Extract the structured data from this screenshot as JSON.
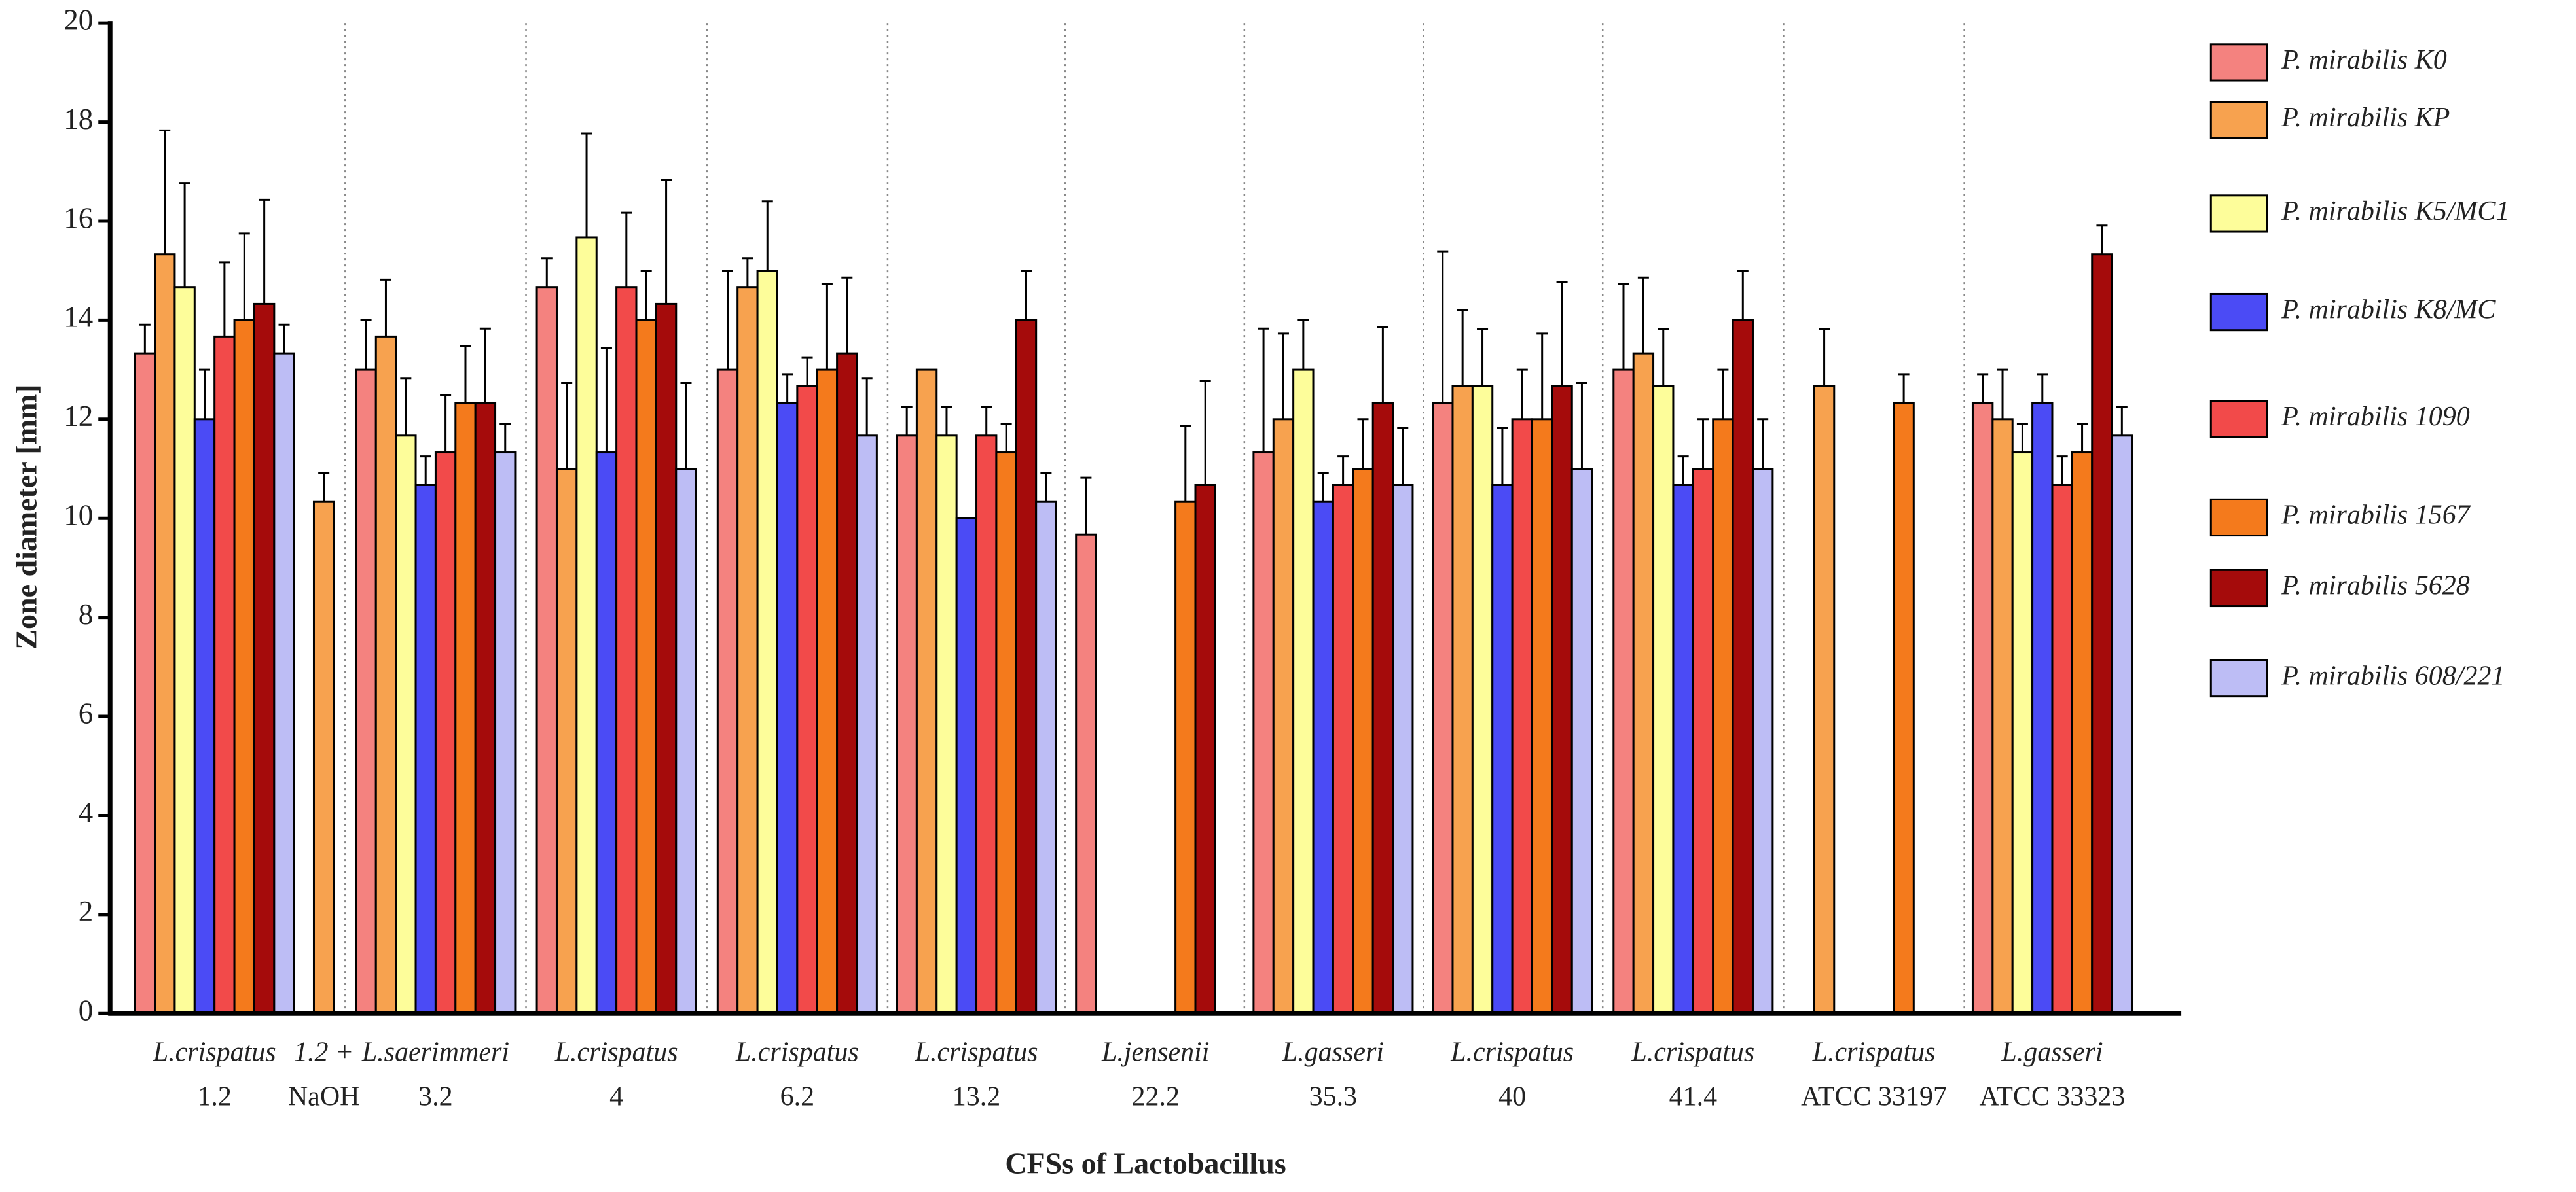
{
  "chart_data": {
    "type": "bar",
    "ylabel": "Zone diameter [mm]",
    "xlabel": "CFSs of Lactobacillus",
    "categories": [
      [
        "L.crispatus",
        "1.2"
      ],
      [
        "1.2 +",
        "NaOH"
      ],
      [
        "L.saerimmeri",
        "3.2"
      ],
      [
        "L.crispatus",
        "4"
      ],
      [
        "L.crispatus",
        "6.2"
      ],
      [
        "L.crispatus",
        "13.2"
      ],
      [
        "L.jensenii",
        "22.2"
      ],
      [
        "L.gasseri",
        "35.3"
      ],
      [
        "L.crispatus",
        "40"
      ],
      [
        "L.crispatus",
        "41.4"
      ],
      [
        "L.crispatus",
        "ATCC 33197"
      ],
      [
        "L.gasseri",
        "ATCC 33323"
      ]
    ],
    "ylim": [
      0,
      20
    ],
    "yticks": [
      0,
      2,
      4,
      6,
      8,
      10,
      12,
      14,
      16,
      18,
      20
    ],
    "grid": false,
    "legend": "right",
    "series": [
      {
        "name": "P. mirabilis K0",
        "color": "#f4827f",
        "values": [
          13.33,
          null,
          13,
          14.67,
          13,
          11.67,
          9.67,
          11.33,
          12.33,
          13,
          null,
          12.33
        ],
        "errors": [
          0.58,
          null,
          1,
          0.58,
          2,
          0.58,
          1.15,
          2.5,
          3.06,
          1.73,
          null,
          0.58
        ]
      },
      {
        "name": "P. mirabilis KP",
        "color": "#f7a24f",
        "values": [
          15.33,
          10.33,
          13.67,
          11,
          14.67,
          13,
          null,
          12,
          12.67,
          13.33,
          12.67,
          12
        ],
        "errors": [
          2.5,
          0.58,
          1.15,
          1.73,
          0.58,
          0,
          null,
          1.73,
          1.53,
          1.53,
          1.15,
          1
        ]
      },
      {
        "name": "P. mirabilis K5/MC1",
        "color": "#fdfd9a",
        "values": [
          14.67,
          null,
          11.67,
          15.67,
          15,
          11.67,
          null,
          13,
          12.67,
          12.67,
          null,
          11.33
        ],
        "errors": [
          2.1,
          null,
          1.15,
          2.1,
          1.4,
          0.58,
          null,
          1,
          1.15,
          1.15,
          null,
          0.58
        ]
      },
      {
        "name": "P. mirabilis K8/MC",
        "color": "#4b4bf5",
        "values": [
          12,
          null,
          10.67,
          11.33,
          12.33,
          10,
          null,
          10.33,
          10.67,
          10.67,
          null,
          12.33
        ],
        "errors": [
          1,
          null,
          0.58,
          2.1,
          0.58,
          0,
          null,
          0.58,
          1.15,
          0.58,
          null,
          0.58
        ]
      },
      {
        "name": "P. mirabilis 1090",
        "color": "#f24a4a",
        "values": [
          13.67,
          null,
          11.33,
          14.67,
          12.67,
          11.67,
          null,
          10.67,
          12,
          11,
          null,
          10.67
        ],
        "errors": [
          1.5,
          null,
          1.15,
          1.5,
          0.58,
          0.58,
          null,
          0.58,
          1,
          1,
          null,
          0.58
        ]
      },
      {
        "name": "P. mirabilis 1567",
        "color": "#f47a1c",
        "values": [
          14,
          null,
          12.33,
          14,
          13,
          11.33,
          10.33,
          11,
          12,
          12,
          12.33,
          11.33
        ],
        "errors": [
          1.75,
          null,
          1.15,
          1,
          1.73,
          0.58,
          1.53,
          1,
          1.73,
          1,
          0.58,
          0.58
        ]
      },
      {
        "name": "P. mirabilis 5628",
        "color": "#a50b0b",
        "values": [
          14.33,
          null,
          12.33,
          14.33,
          13.33,
          14,
          10.67,
          12.33,
          12.67,
          14,
          null,
          15.33
        ],
        "errors": [
          2.1,
          null,
          1.5,
          2.5,
          1.53,
          1,
          2.1,
          1.53,
          2.1,
          1,
          null,
          0.58
        ]
      },
      {
        "name": "P. mirabilis 608/221",
        "color": "#bdbdf5",
        "values": [
          13.33,
          null,
          11.33,
          11,
          11.67,
          10.33,
          null,
          10.67,
          11,
          11,
          null,
          11.67
        ],
        "errors": [
          0.58,
          null,
          0.58,
          1.73,
          1.15,
          0.58,
          null,
          1.15,
          1.73,
          1,
          null,
          0.58
        ]
      }
    ]
  }
}
